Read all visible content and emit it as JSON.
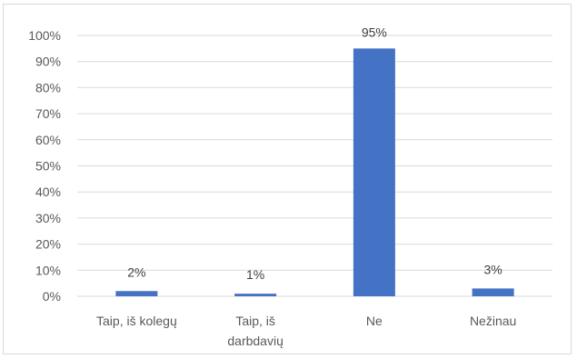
{
  "chart_data": {
    "type": "bar",
    "title": "",
    "xlabel": "",
    "ylabel": "",
    "categories": [
      [
        "Taip, iš kolegų"
      ],
      [
        "Taip, iš",
        "darbdavių"
      ],
      [
        "Ne"
      ],
      [
        "Nežinau"
      ]
    ],
    "values": [
      2,
      1,
      95,
      3
    ],
    "data_labels": [
      "2%",
      "1%",
      "95%",
      "3%"
    ],
    "ylim": [
      0,
      100
    ],
    "yticks": [
      0,
      10,
      20,
      30,
      40,
      50,
      60,
      70,
      80,
      90,
      100
    ],
    "ytick_labels": [
      "0%",
      "10%",
      "20%",
      "30%",
      "40%",
      "50%",
      "60%",
      "70%",
      "80%",
      "90%",
      "100%"
    ],
    "grid": true,
    "legend": false,
    "bar_color": "#4472c4",
    "grid_color": "#d9d9d9"
  }
}
